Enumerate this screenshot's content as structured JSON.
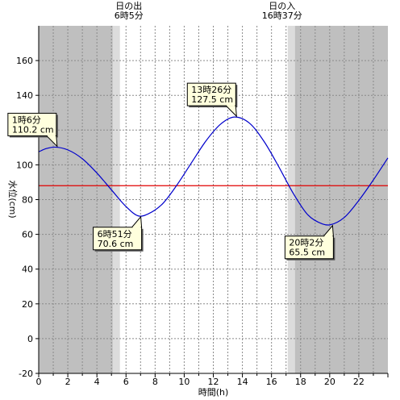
{
  "chart_data": {
    "type": "line",
    "xlabel": "時間(h)",
    "ylabel": "水位(cm)",
    "xlim": [
      0,
      24
    ],
    "ylim": [
      -20,
      180
    ],
    "x_ticks": [
      0,
      2,
      4,
      6,
      8,
      10,
      12,
      14,
      16,
      18,
      20,
      22
    ],
    "y_ticks": [
      -20,
      0,
      20,
      40,
      60,
      80,
      100,
      120,
      140,
      160
    ],
    "grid": true,
    "sunrise": {
      "label": "日の出",
      "time_label": "6時5分",
      "hour": 6.083
    },
    "sunset": {
      "label": "日の入",
      "time_label": "16時37分",
      "hour": 16.617
    },
    "reference_line": {
      "value": 88,
      "color": "#e00000"
    },
    "series": [
      {
        "color": "#0000cc",
        "x": [
          0,
          0.5,
          1.1,
          2,
          3,
          4,
          5,
          6,
          6.85,
          7.5,
          8.5,
          9.5,
          10.5,
          11.5,
          12.5,
          13.43,
          14.5,
          15.5,
          16.5,
          17.5,
          18.5,
          19.5,
          20.03,
          21,
          22,
          23,
          24
        ],
        "y": [
          107.5,
          109.3,
          110.2,
          108.6,
          103.5,
          95.3,
          85.6,
          76.0,
          70.6,
          71.7,
          77.5,
          88.4,
          101.2,
          113.8,
          123.4,
          127.5,
          123.9,
          113.3,
          98.9,
          83.5,
          71.2,
          66.0,
          65.5,
          69.7,
          79.5,
          91.3,
          104.0
        ]
      }
    ],
    "annotations": [
      {
        "time": "1時6分",
        "value": "110.2 cm",
        "x": 1.1,
        "y": 110.2
      },
      {
        "time": "6時51分",
        "value": "70.6 cm",
        "x": 6.85,
        "y": 70.6
      },
      {
        "time": "13時26分",
        "value": "127.5 cm",
        "x": 13.43,
        "y": 127.5
      },
      {
        "time": "20時2分",
        "value": "65.5 cm",
        "x": 20.03,
        "y": 65.5
      }
    ]
  }
}
